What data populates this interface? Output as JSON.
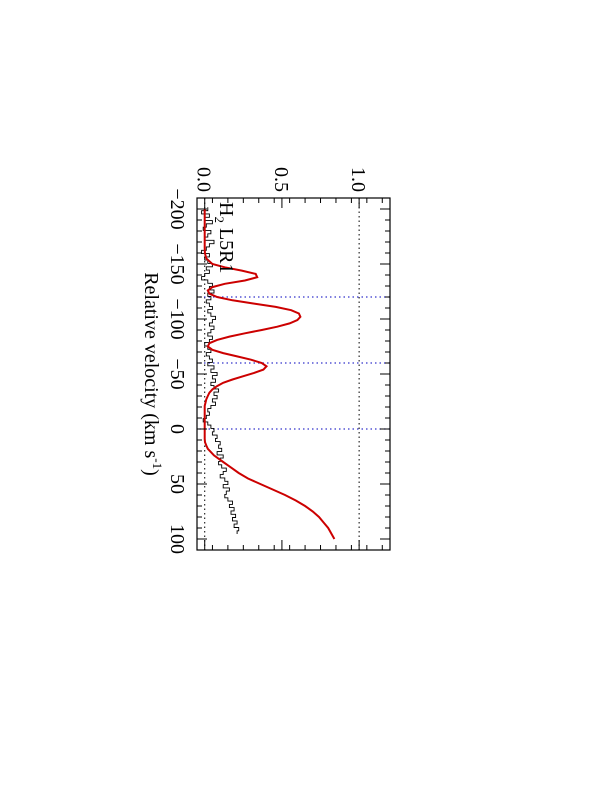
{
  "chart_data": {
    "type": "line",
    "rotation": "rotated 90 degrees clockwise (landscape figure placed on portrait page)",
    "title": "",
    "annotation": {
      "text": "H",
      "subscript": "2",
      "suffix": " L5R1"
    },
    "xlabel": {
      "text": "Relative velocity (km s",
      "superscript": "-1",
      "suffix": ")"
    },
    "ylabel": "",
    "xlim": [
      -210,
      110
    ],
    "ylim": [
      -0.05,
      1.2
    ],
    "x_ticks": [
      -200,
      -150,
      -100,
      -50,
      0,
      50,
      100
    ],
    "x_tick_labels": [
      "−200",
      "−150",
      "−100",
      "−50",
      "0",
      "50",
      "100"
    ],
    "y_ticks": [
      0.0,
      0.5,
      1.0
    ],
    "y_tick_labels": [
      "0.0",
      "0.5",
      "1.0"
    ],
    "reference_lines": {
      "horizontal_dotted": [
        0.0,
        1.0
      ],
      "vertical_dotted": [
        -120,
        -60,
        0
      ]
    },
    "colors": {
      "data": "#000000",
      "model": "#cc0000",
      "reference": "#3333cc",
      "frame": "#000000"
    },
    "series": [
      {
        "style": "histogram",
        "x": [
          -200,
          -197,
          -194,
          -191,
          -188,
          -185,
          -182,
          -179,
          -176,
          -173,
          -170,
          -167,
          -164,
          -161,
          -158,
          -155,
          -152,
          -149,
          -146,
          -143,
          -140,
          -137,
          -134,
          -131,
          -128,
          -125,
          -122,
          -119,
          -116,
          -113,
          -110,
          -107,
          -104,
          -101,
          -98,
          -95,
          -92,
          -89,
          -86,
          -83,
          -80,
          -77,
          -74,
          -71,
          -68,
          -65,
          -62,
          -59,
          -56,
          -53,
          -50,
          -47,
          -44,
          -41,
          -38,
          -35,
          -32,
          -29,
          -26,
          -23,
          -20,
          -17,
          -14,
          -11,
          -8,
          -5,
          -2,
          1,
          4,
          7,
          10,
          13,
          16,
          19,
          22,
          25,
          28,
          31,
          34,
          37,
          40,
          43,
          46,
          49,
          52,
          55,
          58,
          61,
          64,
          67,
          70,
          73,
          76,
          79,
          82,
          85,
          88,
          91,
          94
        ],
        "y": [
          0.02,
          -0.02,
          0.03,
          0.0,
          0.05,
          0.01,
          -0.01,
          0.04,
          0.02,
          0.0,
          0.06,
          0.03,
          0.01,
          -0.02,
          0.03,
          0.0,
          0.02,
          0.05,
          0.01,
          0.03,
          0.0,
          -0.02,
          0.02,
          0.05,
          0.03,
          0.06,
          0.02,
          0.04,
          0.01,
          0.03,
          0.05,
          0.02,
          0.04,
          0.07,
          0.05,
          0.03,
          0.06,
          0.04,
          0.02,
          0.05,
          0.03,
          0.0,
          0.02,
          0.04,
          0.01,
          0.03,
          0.05,
          0.02,
          0.06,
          0.04,
          0.08,
          0.05,
          0.07,
          0.04,
          0.06,
          0.09,
          0.06,
          0.08,
          0.05,
          0.07,
          0.04,
          0.02,
          0.03,
          0.01,
          -0.01,
          0.02,
          0.04,
          0.06,
          0.05,
          0.08,
          0.07,
          0.1,
          0.09,
          0.11,
          0.08,
          0.12,
          0.1,
          0.09,
          0.11,
          0.14,
          0.12,
          0.1,
          0.13,
          0.15,
          0.12,
          0.16,
          0.14,
          0.13,
          0.15,
          0.18,
          0.16,
          0.19,
          0.17,
          0.2,
          0.18,
          0.21,
          0.19,
          0.22,
          0.21
        ]
      },
      {
        "style": "line",
        "x": [
          -200,
          -195,
          -190,
          -185,
          -180,
          -175,
          -170,
          -165,
          -160,
          -155,
          -150,
          -147,
          -144,
          -141,
          -138,
          -135,
          -132,
          -129,
          -126,
          -123,
          -120,
          -117,
          -114,
          -111,
          -108,
          -105,
          -102,
          -99,
          -96,
          -93,
          -90,
          -87,
          -84,
          -81,
          -78,
          -75,
          -72,
          -69,
          -66,
          -63,
          -60,
          -57,
          -54,
          -51,
          -48,
          -45,
          -42,
          -39,
          -36,
          -33,
          -30,
          -27,
          -24,
          -21,
          -18,
          -15,
          -12,
          -9,
          -6,
          -3,
          0,
          3,
          6,
          9,
          12,
          15,
          18,
          21,
          24,
          27,
          30,
          33,
          36,
          40,
          45,
          50,
          55,
          60,
          65,
          70,
          75,
          80,
          85,
          90,
          95,
          100
        ],
        "y": [
          0.0,
          0.0,
          0.0,
          0.0,
          0.0,
          0.0,
          0.0,
          0.0,
          0.001,
          0.01,
          0.05,
          0.13,
          0.24,
          0.33,
          0.34,
          0.26,
          0.13,
          0.05,
          0.02,
          0.03,
          0.08,
          0.18,
          0.32,
          0.46,
          0.56,
          0.61,
          0.62,
          0.6,
          0.55,
          0.47,
          0.37,
          0.26,
          0.16,
          0.08,
          0.03,
          0.02,
          0.05,
          0.12,
          0.21,
          0.3,
          0.37,
          0.4,
          0.38,
          0.32,
          0.25,
          0.18,
          0.12,
          0.08,
          0.05,
          0.03,
          0.02,
          0.01,
          0.005,
          0.0,
          0.0,
          0.0,
          0.0,
          0.0,
          0.0,
          0.0,
          0.0,
          0.0,
          0.0,
          0.0,
          0.002,
          0.01,
          0.02,
          0.04,
          0.06,
          0.09,
          0.12,
          0.15,
          0.18,
          0.22,
          0.28,
          0.36,
          0.44,
          0.52,
          0.59,
          0.65,
          0.7,
          0.74,
          0.77,
          0.8,
          0.82,
          0.84
        ]
      }
    ]
  }
}
